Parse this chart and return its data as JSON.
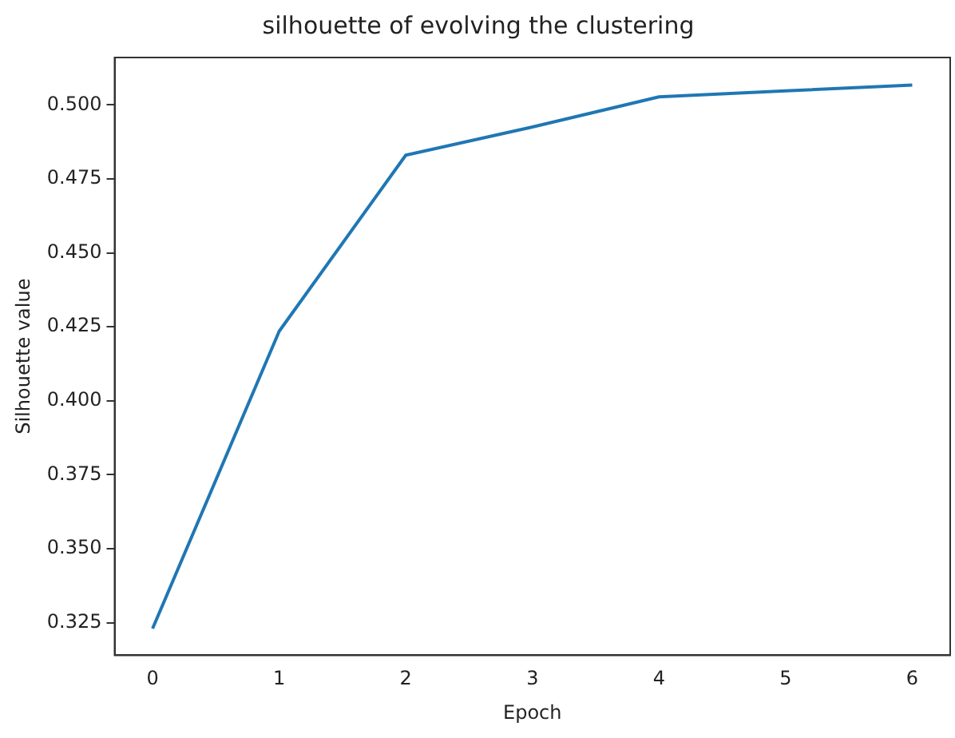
{
  "chart_data": {
    "type": "line",
    "title": "silhouette of evolving the clustering",
    "xlabel": "Epoch",
    "ylabel": "Silhouette value",
    "x": [
      0,
      1,
      2,
      3,
      4,
      5,
      6
    ],
    "series": [
      {
        "color": "#1f77b4",
        "values": [
          0.323,
          0.4235,
          0.483,
          0.4925,
          0.5027,
          0.5047,
          0.5067
        ]
      }
    ],
    "xlim": [
      -0.3,
      6.3
    ],
    "xticks": [
      0,
      1,
      2,
      3,
      4,
      5,
      6
    ],
    "ylim": [
      0.314,
      0.516
    ],
    "yticks": [
      0.325,
      {
        "value": 0.35,
        "label": "0.350"
      },
      0.375,
      {
        "value": 0.4,
        "label": "0.400"
      },
      0.425,
      {
        "value": 0.45,
        "label": "0.450"
      },
      0.475,
      {
        "value": 0.5,
        "label": "0.500"
      }
    ],
    "grid": false,
    "legend": false,
    "marker": "none",
    "line_style": "solid"
  }
}
